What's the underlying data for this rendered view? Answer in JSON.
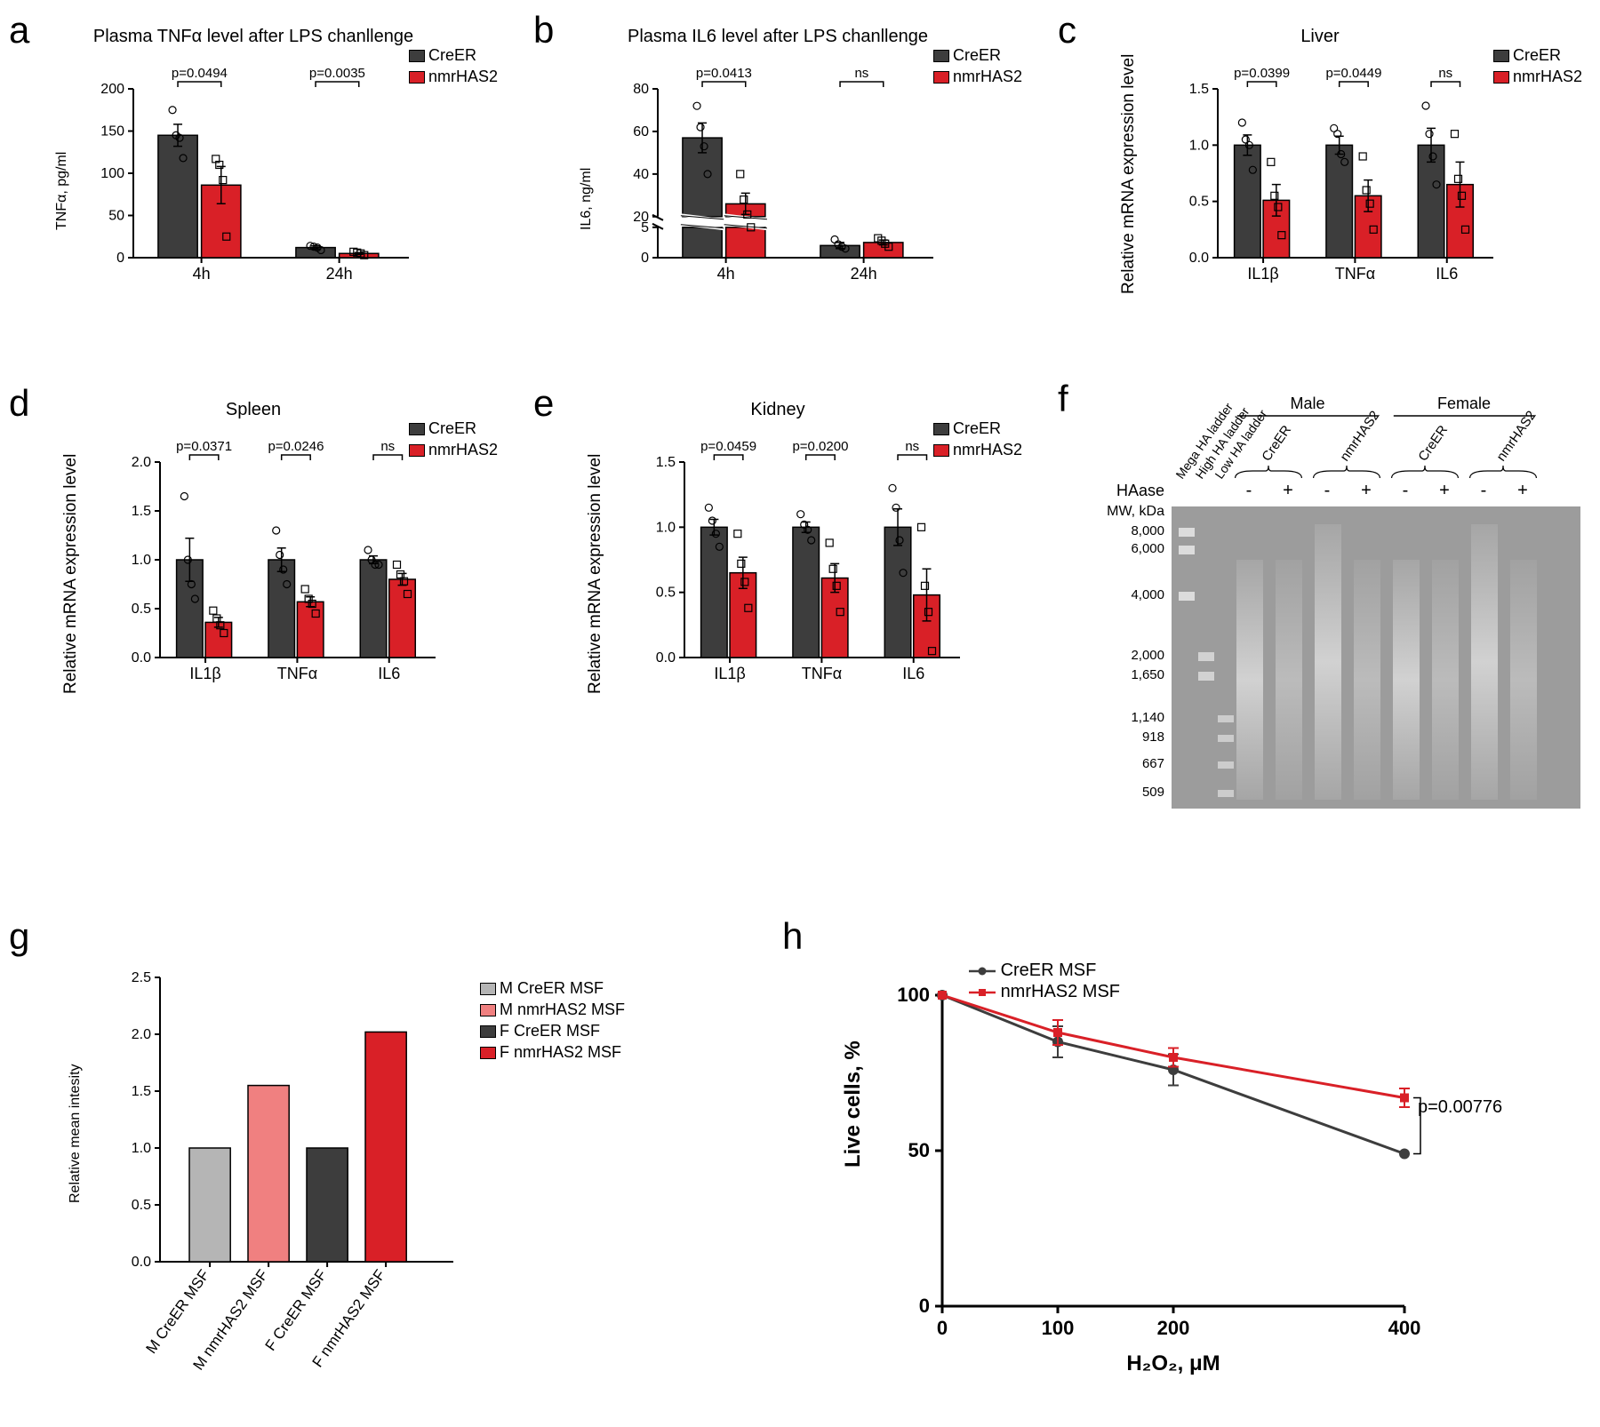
{
  "colors": {
    "creER": "#3d3d3d",
    "nmrHAS2": "#d92027",
    "light_creER": "#b5b5b5",
    "light_nmrHAS2": "#f08080",
    "axis": "#000000",
    "bg": "#ffffff",
    "gel": "#9a9a9a"
  },
  "fonts": {
    "panel_label_size": 42,
    "title_size": 20,
    "axis_label_size": 20,
    "tick_size": 16
  },
  "legend_main": {
    "items": [
      {
        "label": "CreER",
        "color": "#3d3d3d"
      },
      {
        "label": "nmrHAS2",
        "color": "#d92027"
      }
    ]
  },
  "panel_a": {
    "label": "a",
    "title": "Plasma TNFα level after LPS chanllenge",
    "ylabel": "TNFα, pg/ml",
    "ylim": [
      0,
      200
    ],
    "yticks": [
      0,
      50,
      100,
      150,
      200
    ],
    "groups": [
      "4h",
      "24h"
    ],
    "series": [
      {
        "name": "CreER",
        "color": "#3d3d3d",
        "values": [
          145,
          12
        ],
        "err": [
          13,
          2
        ],
        "points": [
          [
            175,
            145,
            142,
            118
          ],
          [
            14,
            13,
            12,
            9
          ]
        ]
      },
      {
        "name": "nmrHAS2",
        "color": "#d92027",
        "values": [
          86,
          5
        ],
        "err": [
          22,
          1
        ],
        "points": [
          [
            117,
            110,
            92,
            25
          ],
          [
            7,
            6,
            5,
            3
          ]
        ]
      }
    ],
    "annotations": [
      {
        "text": "p=0.0494",
        "group": 0
      },
      {
        "text": "p=0.0035",
        "group": 1
      }
    ]
  },
  "panel_b": {
    "label": "b",
    "title": "Plasma IL6 level after LPS chanllenge",
    "ylabel": "IL6, ng/ml",
    "broken": true,
    "upper_ylim": [
      20,
      80
    ],
    "upper_yticks": [
      20,
      40,
      60,
      80
    ],
    "lower_ylim": [
      0,
      5
    ],
    "lower_yticks": [
      0,
      5
    ],
    "groups": [
      "4h",
      "24h"
    ],
    "series": [
      {
        "name": "CreER",
        "color": "#3d3d3d",
        "values": [
          57,
          2
        ],
        "err": [
          7,
          0.5
        ],
        "points": [
          [
            72,
            62,
            53,
            40
          ],
          [
            3,
            2.2,
            1.8,
            1.5
          ]
        ]
      },
      {
        "name": "nmrHAS2",
        "color": "#d92027",
        "values": [
          26,
          2.5
        ],
        "err": [
          5,
          0.4
        ],
        "points": [
          [
            40,
            28,
            21,
            15
          ],
          [
            3.2,
            2.8,
            2.3,
            1.8
          ]
        ]
      }
    ],
    "annotations": [
      {
        "text": "p=0.0413",
        "group": 0
      },
      {
        "text": "ns",
        "group": 1
      }
    ]
  },
  "panel_c": {
    "label": "c",
    "title": "Liver",
    "ylabel": "Relative mRNA expression level",
    "ylim": [
      0,
      1.5
    ],
    "yticks": [
      0,
      0.5,
      1.0,
      1.5
    ],
    "groups": [
      "IL1β",
      "TNFα",
      "IL6"
    ],
    "series": [
      {
        "name": "CreER",
        "color": "#3d3d3d",
        "values": [
          1.0,
          1.0,
          1.0
        ],
        "err": [
          0.09,
          0.08,
          0.15
        ],
        "points": [
          [
            1.2,
            1.05,
            1.0,
            0.78
          ],
          [
            1.15,
            1.1,
            0.92,
            0.85
          ],
          [
            1.35,
            1.1,
            0.9,
            0.65
          ]
        ]
      },
      {
        "name": "nmrHAS2",
        "color": "#d92027",
        "values": [
          0.51,
          0.55,
          0.65
        ],
        "err": [
          0.14,
          0.14,
          0.2
        ],
        "points": [
          [
            0.85,
            0.55,
            0.45,
            0.2
          ],
          [
            0.9,
            0.6,
            0.48,
            0.25
          ],
          [
            1.1,
            0.7,
            0.55,
            0.25
          ]
        ]
      }
    ],
    "annotations": [
      {
        "text": "p=0.0399",
        "group": 0
      },
      {
        "text": "p=0.0449",
        "group": 1
      },
      {
        "text": "ns",
        "group": 2
      }
    ]
  },
  "panel_d": {
    "label": "d",
    "title": "Spleen",
    "ylabel": "Relative mRNA expression level",
    "ylim": [
      0,
      2.0
    ],
    "yticks": [
      0,
      0.5,
      1.0,
      1.5,
      2.0
    ],
    "groups": [
      "IL1β",
      "TNFα",
      "IL6"
    ],
    "series": [
      {
        "name": "CreER",
        "color": "#3d3d3d",
        "values": [
          1.0,
          1.0,
          1.0
        ],
        "err": [
          0.22,
          0.12,
          0.04
        ],
        "points": [
          [
            1.65,
            1.0,
            0.75,
            0.6
          ],
          [
            1.3,
            1.05,
            0.9,
            0.75
          ],
          [
            1.1,
            1.0,
            0.95,
            0.95
          ]
        ]
      },
      {
        "name": "nmrHAS2",
        "color": "#d92027",
        "values": [
          0.36,
          0.57,
          0.8
        ],
        "err": [
          0.05,
          0.05,
          0.06
        ],
        "points": [
          [
            0.48,
            0.4,
            0.33,
            0.25
          ],
          [
            0.7,
            0.6,
            0.55,
            0.45
          ],
          [
            0.95,
            0.85,
            0.78,
            0.65
          ]
        ]
      }
    ],
    "annotations": [
      {
        "text": "p=0.0371",
        "group": 0
      },
      {
        "text": "p=0.0246",
        "group": 1
      },
      {
        "text": "ns",
        "group": 2
      }
    ]
  },
  "panel_e": {
    "label": "e",
    "title": "Kidney",
    "ylabel": "Relative mRNA expression level",
    "ylim": [
      0,
      1.5
    ],
    "yticks": [
      0,
      0.5,
      1.0,
      1.5
    ],
    "groups": [
      "IL1β",
      "TNFα",
      "IL6"
    ],
    "series": [
      {
        "name": "CreER",
        "color": "#3d3d3d",
        "values": [
          1.0,
          1.0,
          1.0
        ],
        "err": [
          0.06,
          0.04,
          0.14
        ],
        "points": [
          [
            1.15,
            1.05,
            0.95,
            0.85
          ],
          [
            1.1,
            1.02,
            0.98,
            0.9
          ],
          [
            1.3,
            1.15,
            0.9,
            0.65
          ]
        ]
      },
      {
        "name": "nmrHAS2",
        "color": "#d92027",
        "values": [
          0.65,
          0.61,
          0.48
        ],
        "err": [
          0.12,
          0.11,
          0.2
        ],
        "points": [
          [
            0.95,
            0.72,
            0.58,
            0.38
          ],
          [
            0.88,
            0.68,
            0.55,
            0.35
          ],
          [
            1.0,
            0.55,
            0.35,
            0.05
          ]
        ]
      }
    ],
    "annotations": [
      {
        "text": "p=0.0459",
        "group": 0
      },
      {
        "text": "p=0.0200",
        "group": 1
      },
      {
        "text": "ns",
        "group": 2
      }
    ]
  },
  "panel_f": {
    "label": "f",
    "ladder_labels": [
      "Mega HA ladder",
      "High HA ladder",
      "Low HA ladder"
    ],
    "sample_groups": [
      "Male",
      "Female"
    ],
    "sample_types": [
      "CreER",
      "nmrHAS2"
    ],
    "haase_row": "HAase",
    "haase_signs": [
      "-",
      "+",
      "-",
      "+",
      "-",
      "+",
      "-",
      "+"
    ],
    "mw_label": "MW, kDa",
    "mw_values": [
      "8,000",
      "6,000",
      "4,000",
      "2,000",
      "1,650",
      "1,140",
      "918",
      "667",
      "509"
    ]
  },
  "panel_g": {
    "label": "g",
    "ylabel": "Relative mean intesity",
    "ylim": [
      0,
      2.5
    ],
    "yticks": [
      0,
      0.5,
      1.0,
      1.5,
      2.0,
      2.5
    ],
    "categories": [
      "M CreER MSF",
      "M nmrHAS2 MSF",
      "F CreER MSF",
      "F nmrHAS2 MSF"
    ],
    "bars": [
      {
        "label": "M CreER MSF",
        "value": 1.0,
        "color": "#b5b5b5"
      },
      {
        "label": "M nmrHAS2 MSF",
        "value": 1.55,
        "color": "#f08080"
      },
      {
        "label": "F CreER MSF",
        "value": 1.0,
        "color": "#3d3d3d"
      },
      {
        "label": "F nmrHAS2 MSF",
        "value": 2.02,
        "color": "#d92027"
      }
    ],
    "legend": [
      {
        "label": "M CreER MSF",
        "color": "#b5b5b5"
      },
      {
        "label": "M nmrHAS2 MSF",
        "color": "#f08080"
      },
      {
        "label": "F CreER MSF",
        "color": "#3d3d3d"
      },
      {
        "label": "F nmrHAS2 MSF",
        "color": "#d92027"
      }
    ]
  },
  "panel_h": {
    "label": "h",
    "ylabel": "Live cells, %",
    "xlabel": "H₂O₂, μM",
    "ylim": [
      0,
      100
    ],
    "yticks": [
      0,
      50,
      100
    ],
    "xlim": [
      0,
      400
    ],
    "xticks": [
      0,
      100,
      200,
      400
    ],
    "series": [
      {
        "name": "CreER MSF",
        "color": "#3d3d3d",
        "marker": "circle",
        "x": [
          0,
          100,
          200,
          400
        ],
        "y": [
          100,
          85,
          76,
          49
        ],
        "err": [
          0,
          5,
          5,
          0
        ]
      },
      {
        "name": "nmrHAS2 MSF",
        "color": "#d92027",
        "marker": "square",
        "x": [
          0,
          100,
          200,
          400
        ],
        "y": [
          100,
          88,
          80,
          67
        ],
        "err": [
          0,
          4,
          3,
          3
        ]
      }
    ],
    "annotation": "p=0.00776"
  }
}
